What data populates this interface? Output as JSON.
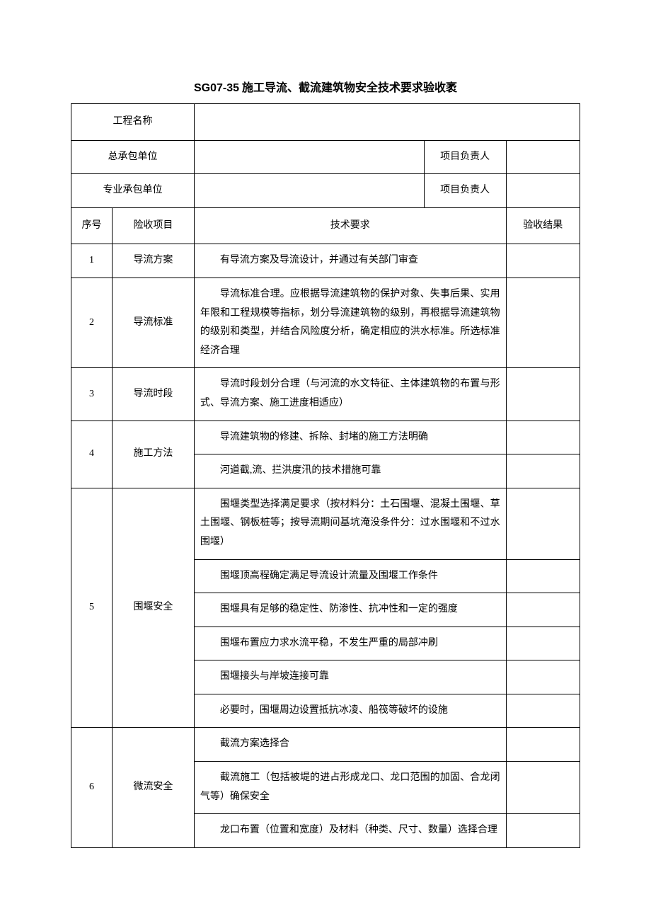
{
  "doc": {
    "code": "SG07-35",
    "title": "施工导流、截流建筑物安全技术要求验收袤"
  },
  "header": {
    "project_name_label": "工程名称",
    "general_contractor_label": "总承包单位",
    "specialty_contractor_label": "专业承包单位",
    "pm_label_1": "项目负责人",
    "pm_label_2": "项目负责人",
    "project_name_value": "",
    "gc_value": "",
    "sc_value": "",
    "pm1_value": "",
    "pm2_value": ""
  },
  "cols": {
    "seq": "序号",
    "item": "险收项目",
    "req": "技术要求",
    "result": "验收结果"
  },
  "rows": [
    {
      "seq": "1",
      "item": "导流方案",
      "reqs": [
        "有导流方案及导流设计，并通过有关部门审查"
      ],
      "results": [
        ""
      ]
    },
    {
      "seq": "2",
      "item": "导流标准",
      "reqs": [
        "导流标准合理。应根据导流建筑物的保护对象、失事后果、实用年限和工程规模等指标，划分导流建筑物的级别，再根据导流建筑物的级别和类型，并结合风险度分析，确定相应的洪水标准。所选标准经济合理"
      ],
      "results": [
        ""
      ]
    },
    {
      "seq": "3",
      "item": "导流时段",
      "reqs": [
        "导流时段划分合理（与河流的水文特征、主体建筑物的布置与形式、导流方案、施工进度相适应）"
      ],
      "results": [
        ""
      ]
    },
    {
      "seq": "4",
      "item": "施工方法",
      "reqs": [
        "导流建筑物的修建、拆除、封堵的施工方法明确",
        "河道截,流、拦洪度汛的技术措施可靠"
      ],
      "results": [
        "",
        ""
      ]
    },
    {
      "seq": "5",
      "item": "围堰安全",
      "reqs": [
        "围堰类型选择满足要求（按材料分：土石围堰、混凝土围堰、草土围堰、钢板桩等；按导流期间基坑淹没条件分：过水围堰和不过水围堰）",
        "围堰顶高程确定满足导流设计流量及围堰工作条件",
        "围堰具有足够的稳定性、防渗性、抗冲性和一定的强度",
        "围堰布置应力求水流平稳，不发生严重的局部冲刷",
        "围堰接头与岸坡连接可靠",
        "必要时，围堰周边设置抵抗冰凌、船筏等破坏的设施"
      ],
      "results": [
        "",
        "",
        "",
        "",
        "",
        ""
      ]
    },
    {
      "seq": "6",
      "item": "微流安全",
      "reqs": [
        "截流方案选择合",
        "截流施工（包括被堤的进占形成龙口、龙口范围的加固、合龙闭气等）确保安全",
        "龙口布置（位置和宽度）及材料（种类、尺寸、数量）选择合理"
      ],
      "results": [
        "",
        "",
        ""
      ]
    }
  ],
  "style": {
    "background": "#ffffff",
    "border_color": "#000000",
    "text_color": "#000000",
    "title_fontsize": 16,
    "body_fontsize": 14
  }
}
